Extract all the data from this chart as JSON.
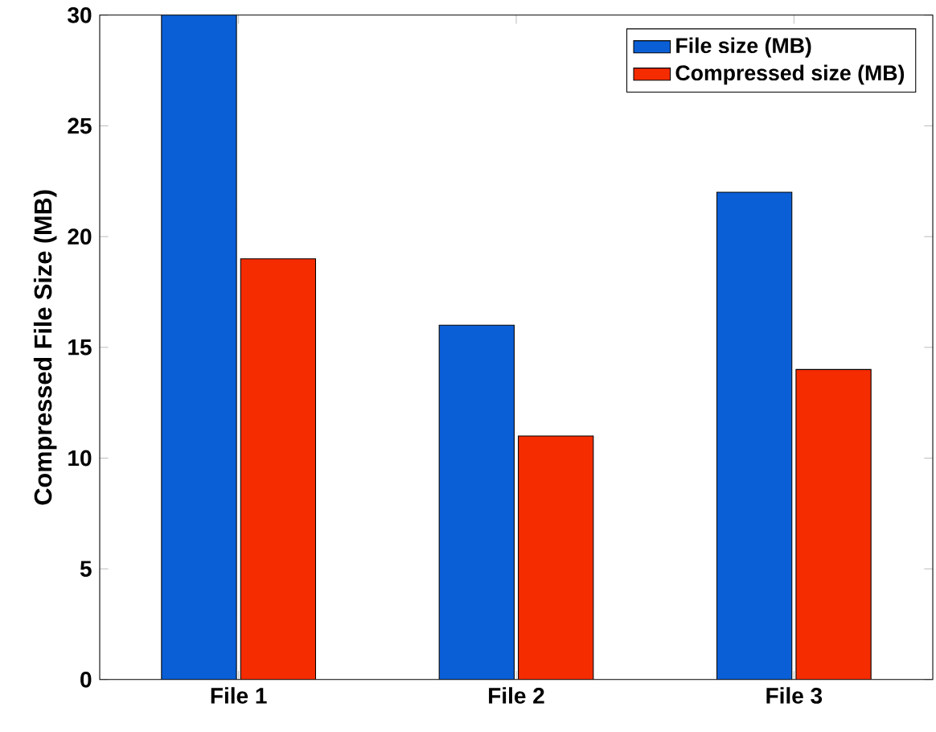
{
  "chart_data": {
    "type": "bar",
    "ylabel": "Compressed File Size (MB)",
    "categories": [
      "File 1",
      "File 2",
      "File 3"
    ],
    "series": [
      {
        "name": "File size (MB)",
        "color": "#0a5fd6",
        "values": [
          30,
          16,
          22
        ]
      },
      {
        "name": "Compressed size (MB)",
        "color": "#f52c00",
        "values": [
          19,
          11,
          14
        ]
      }
    ],
    "ylim": [
      0,
      30
    ],
    "yticks": [
      0,
      5,
      10,
      15,
      20,
      25,
      30
    ],
    "legend": "top right",
    "grid": false
  }
}
